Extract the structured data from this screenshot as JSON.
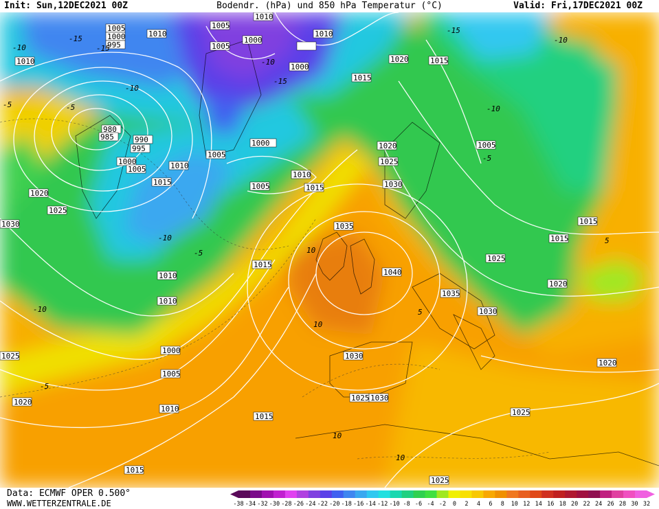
{
  "header": {
    "init": "Init: Sun,12DEC2021 00Z",
    "title": "Bodendr. (hPa) und 850 hPa Temperatur (°C)",
    "valid": "Valid: Fri,17DEC2021 00Z"
  },
  "footer": {
    "data_source": "Data: ECMWF OPER 0.500°",
    "website": "WWW.WETTERZENTRALE.DE"
  },
  "legend": {
    "ticks": [
      "-38",
      "-34",
      "-32",
      "-30",
      "-28",
      "-26",
      "-24",
      "-22",
      "-20",
      "-18",
      "-16",
      "-14",
      "-12",
      "-10",
      "-8",
      "-6",
      "-4",
      "-2",
      "0",
      "2",
      "4",
      "6",
      "8",
      "10",
      "12",
      "14",
      "16",
      "18",
      "20",
      "22",
      "24",
      "26",
      "28",
      "30",
      "32"
    ],
    "colors": [
      "#5a0a5a",
      "#7a0a8a",
      "#a010b0",
      "#c020d0",
      "#e040f0",
      "#b040e0",
      "#8040e0",
      "#5a40e8",
      "#4060f0",
      "#3f86f0",
      "#3aa8f0",
      "#30c8f0",
      "#22e0e0",
      "#18d8b0",
      "#20d080",
      "#30d050",
      "#40e040",
      "#a0e820",
      "#f0f000",
      "#f8e000",
      "#f8c800",
      "#f8a800",
      "#f09000",
      "#f07820",
      "#e86020",
      "#e04818",
      "#d03020",
      "#c02020",
      "#b01830",
      "#a01040",
      "#901050",
      "#c02080",
      "#e040a0",
      "#f050c0",
      "#f060e0"
    ],
    "colors_semantic": "850 hPa temperature color scale, cold (purple/blue) to warm (orange/red/pink)"
  },
  "map": {
    "pressure_labels": [
      "1010",
      "1005",
      "1000",
      "995",
      "1010",
      "1005",
      "1010",
      "1000",
      "1005",
      "1000",
      "1010",
      "1020",
      "1015",
      "1015",
      "980",
      "985",
      "990",
      "995",
      "1000",
      "1005",
      "1010",
      "1015",
      "1020",
      "1025",
      "1030",
      "1000",
      "1005",
      "1010",
      "1015",
      "1020",
      "1025",
      "1030",
      "1035",
      "1040",
      "1035",
      "1030",
      "1005",
      "1010",
      "1015",
      "1015",
      "1020",
      "1025",
      "1015",
      "1010",
      "1005",
      "1000",
      "1005",
      "1010",
      "1025",
      "1020",
      "1030",
      "1025",
      "1030",
      "1015",
      "1025",
      "1015",
      "1025",
      "1020",
      "1015",
      "1025"
    ],
    "temperature_labels": [
      "-10",
      "-15",
      "-15",
      "-10",
      "-5",
      "-5",
      "-10",
      "-15",
      "-15",
      "-10",
      "-10",
      "-10",
      "-5",
      "-5",
      "-10",
      "-5",
      "-10",
      "-5",
      "-10",
      "10",
      "5",
      "5",
      "10",
      "10",
      "10",
      "5",
      "5",
      "10",
      "-10",
      "-5"
    ]
  }
}
